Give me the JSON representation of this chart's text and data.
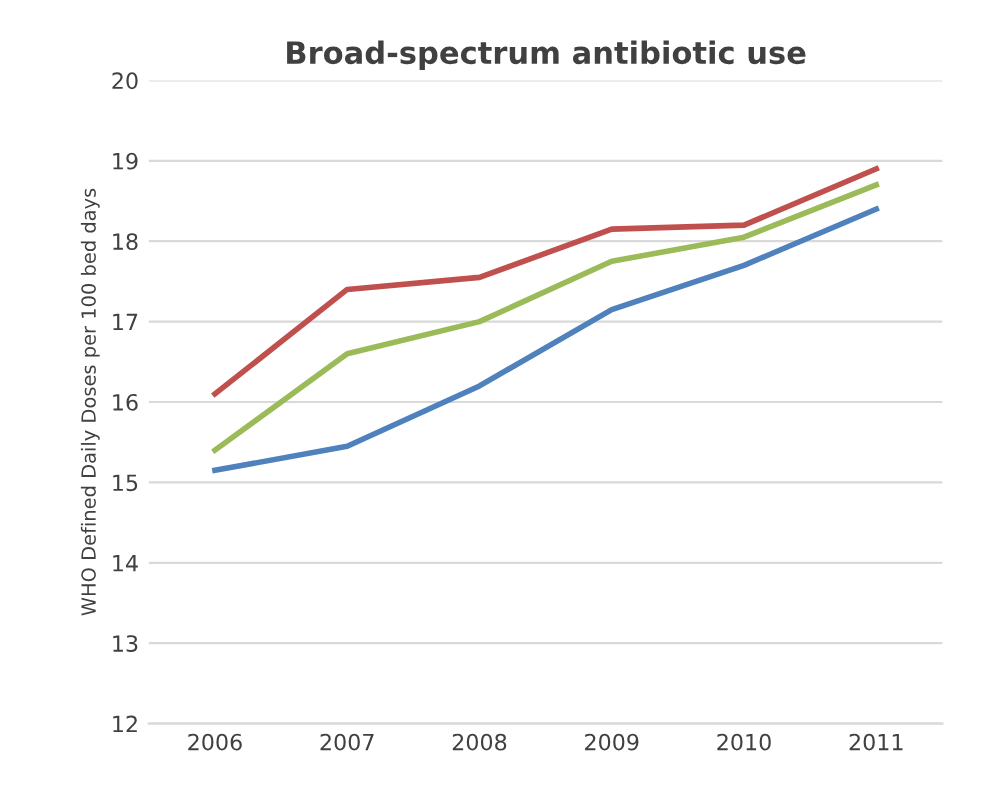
{
  "chart_data": {
    "type": "line",
    "title": "Broad-spectrum antibiotic use",
    "ylabel": "WHO Defined Daily Doses per 100 bed days",
    "categories": [
      "2006",
      "2007",
      "2008",
      "2009",
      "2010",
      "2011"
    ],
    "series": [
      {
        "color": "#c0504d",
        "values": [
          16.1,
          17.4,
          17.55,
          18.15,
          18.2,
          18.9
        ]
      },
      {
        "color": "#9bbb59",
        "values": [
          15.4,
          16.6,
          17.0,
          17.75,
          18.05,
          18.7
        ]
      },
      {
        "color": "#4f81bd",
        "values": [
          15.15,
          15.45,
          16.2,
          17.15,
          17.7,
          18.4
        ]
      }
    ],
    "ylim": [
      12,
      20
    ],
    "yticks": [
      12,
      13,
      14,
      15,
      16,
      17,
      18,
      19,
      20
    ],
    "grid": "y",
    "marker": "none",
    "line_style": "solid",
    "legend": false
  }
}
